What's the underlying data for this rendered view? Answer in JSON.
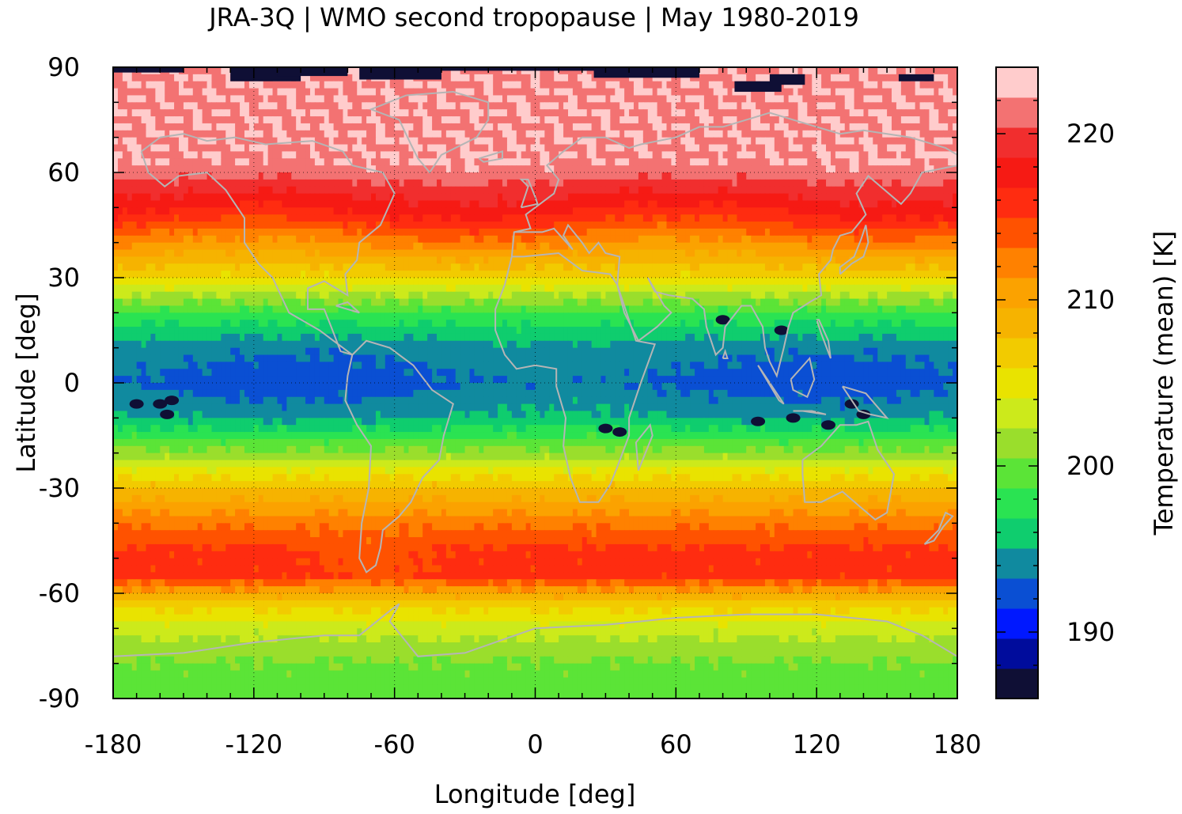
{
  "chart_data": {
    "type": "heatmap",
    "title": "JRA-3Q | WMO second tropopause | May 1980-2019",
    "xlabel": "Longitude [deg]",
    "ylabel": "Latitude [deg]",
    "colorbar_label": "Temperature (mean) [K]",
    "xlim": [
      -180,
      180
    ],
    "ylim": [
      -90,
      90
    ],
    "xticks": [
      -180,
      -120,
      -60,
      0,
      60,
      120,
      180
    ],
    "yticks": [
      90,
      60,
      30,
      0,
      -30,
      -60,
      -90
    ],
    "colorbar_ticks": [
      190,
      200,
      210,
      220
    ],
    "colorbar_range": [
      186,
      224
    ],
    "grid": true,
    "colormap": [
      "#0f0f35",
      "#000c9c",
      "#0018ff",
      "#0a4fd3",
      "#108a9f",
      "#0fcd6e",
      "#2ae352",
      "#5be437",
      "#9ade2c",
      "#ccea1b",
      "#e9e300",
      "#f2cb00",
      "#f6b300",
      "#fba200",
      "#ff8100",
      "#ff5200",
      "#ff2c10",
      "#f61a14",
      "#f12e2e",
      "#f37272",
      "#ffcccc"
    ],
    "zonal_mean_profile": [
      {
        "lat": -90,
        "temp": 199
      },
      {
        "lat": -80,
        "temp": 200
      },
      {
        "lat": -70,
        "temp": 203
      },
      {
        "lat": -63,
        "temp": 207
      },
      {
        "lat": -55,
        "temp": 216
      },
      {
        "lat": -48,
        "temp": 216
      },
      {
        "lat": -40,
        "temp": 213
      },
      {
        "lat": -30,
        "temp": 208
      },
      {
        "lat": -20,
        "temp": 201
      },
      {
        "lat": -10,
        "temp": 195
      },
      {
        "lat": 0,
        "temp": 193
      },
      {
        "lat": 10,
        "temp": 194
      },
      {
        "lat": 20,
        "temp": 198
      },
      {
        "lat": 30,
        "temp": 206
      },
      {
        "lat": 40,
        "temp": 212
      },
      {
        "lat": 48,
        "temp": 217
      },
      {
        "lat": 55,
        "temp": 220
      },
      {
        "lat": 62,
        "temp": 223
      },
      {
        "lat": 75,
        "temp": 223
      },
      {
        "lat": 90,
        "temp": 223
      }
    ]
  }
}
